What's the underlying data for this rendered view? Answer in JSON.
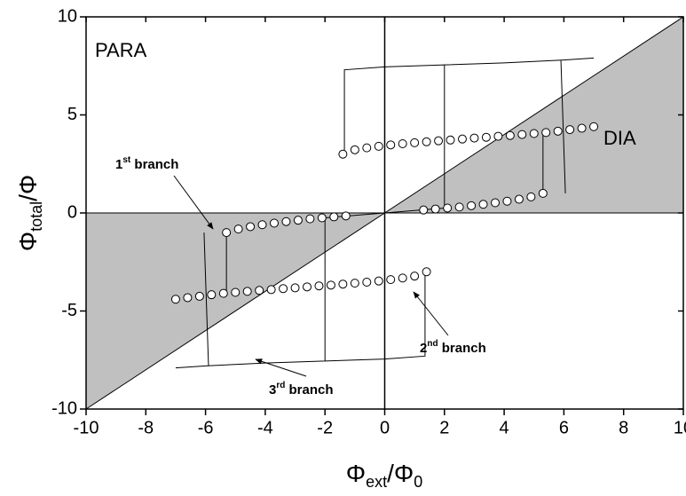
{
  "chart_data": {
    "type": "line",
    "x_label": [
      "Φ",
      "ext",
      "/Φ",
      "0"
    ],
    "y_label": [
      "Φ",
      "total",
      "/Φ"
    ],
    "xlim": [
      -10,
      10
    ],
    "ylim": [
      -10,
      10
    ],
    "xticks": [
      -10,
      -8,
      -6,
      -4,
      -2,
      0,
      2,
      4,
      6,
      8,
      10
    ],
    "yticks": [
      -10,
      -5,
      0,
      5,
      10
    ],
    "shade": "#c0c0c0",
    "regions": [
      "PARA",
      "DIA"
    ],
    "annotations": [
      [
        "1",
        "st",
        " branch"
      ],
      [
        "2",
        "nd",
        " branch"
      ],
      [
        "3",
        "rd",
        " branch"
      ]
    ],
    "series": [
      {
        "color": "#000000",
        "marker": "none",
        "x": [
          -1.35,
          -1.35,
          0,
          2,
          4,
          6,
          7,
          null,
          2,
          2,
          null,
          5.9,
          6.05,
          null,
          5.3,
          5.3,
          null,
          -2,
          0,
          2,
          null,
          1.35,
          1.35,
          0,
          -2,
          -4,
          -6,
          -7,
          null,
          -2,
          -2,
          null,
          -5.9,
          -6.05,
          null,
          -5.3,
          -5.3
        ],
        "values": [
          3.0,
          7.3,
          7.45,
          7.55,
          7.65,
          7.8,
          7.9,
          null,
          0.25,
          7.55,
          null,
          7.8,
          1.0,
          null,
          4.25,
          1.0,
          null,
          -0.25,
          0,
          0.25,
          null,
          -3.0,
          -7.3,
          -7.45,
          -7.55,
          -7.65,
          -7.8,
          -7.9,
          null,
          -0.25,
          -7.55,
          null,
          -7.8,
          -1.0,
          null,
          -4.25,
          -1.0
        ]
      },
      {
        "color": "#000000",
        "marker": "circle",
        "x": [
          -1.4,
          -1.0,
          -0.6,
          -0.2,
          0.2,
          0.6,
          1.0,
          1.4,
          1.8,
          2.2,
          2.6,
          3.0,
          3.4,
          3.8,
          4.2,
          4.6,
          5.0,
          5.4,
          5.8,
          6.2,
          6.6,
          7.0
        ],
        "values": [
          3.0,
          3.22,
          3.32,
          3.4,
          3.47,
          3.53,
          3.58,
          3.63,
          3.68,
          3.72,
          3.77,
          3.82,
          3.86,
          3.91,
          3.95,
          4.0,
          4.05,
          4.1,
          4.17,
          4.25,
          4.32,
          4.4
        ]
      },
      {
        "color": "#000000",
        "marker": "circle",
        "x": [
          1.4,
          1.0,
          0.6,
          0.2,
          -0.2,
          -0.6,
          -1.0,
          -1.4,
          -1.8,
          -2.2,
          -2.6,
          -3.0,
          -3.4,
          -3.8,
          -4.2,
          -4.6,
          -5.0,
          -5.4,
          -5.8,
          -6.2,
          -6.6,
          -7.0
        ],
        "values": [
          -3.0,
          -3.22,
          -3.32,
          -3.4,
          -3.47,
          -3.53,
          -3.58,
          -3.63,
          -3.68,
          -3.72,
          -3.77,
          -3.82,
          -3.86,
          -3.91,
          -3.95,
          -4.0,
          -4.05,
          -4.1,
          -4.17,
          -4.25,
          -4.32,
          -4.4
        ]
      },
      {
        "color": "#000000",
        "marker": "circle",
        "x": [
          1.3,
          1.7,
          2.1,
          2.5,
          2.9,
          3.3,
          3.7,
          4.1,
          4.5,
          4.9,
          5.3
        ],
        "values": [
          0.15,
          0.2,
          0.25,
          0.3,
          0.37,
          0.44,
          0.52,
          0.6,
          0.7,
          0.82,
          1.0
        ]
      },
      {
        "color": "#000000",
        "marker": "circle",
        "x": [
          -1.3,
          -1.7,
          -2.1,
          -2.5,
          -2.9,
          -3.3,
          -3.7,
          -4.1,
          -4.5,
          -4.9,
          -5.3
        ],
        "values": [
          -0.15,
          -0.2,
          -0.25,
          -0.3,
          -0.37,
          -0.44,
          -0.52,
          -0.6,
          -0.7,
          -0.82,
          -1.0
        ]
      }
    ]
  }
}
